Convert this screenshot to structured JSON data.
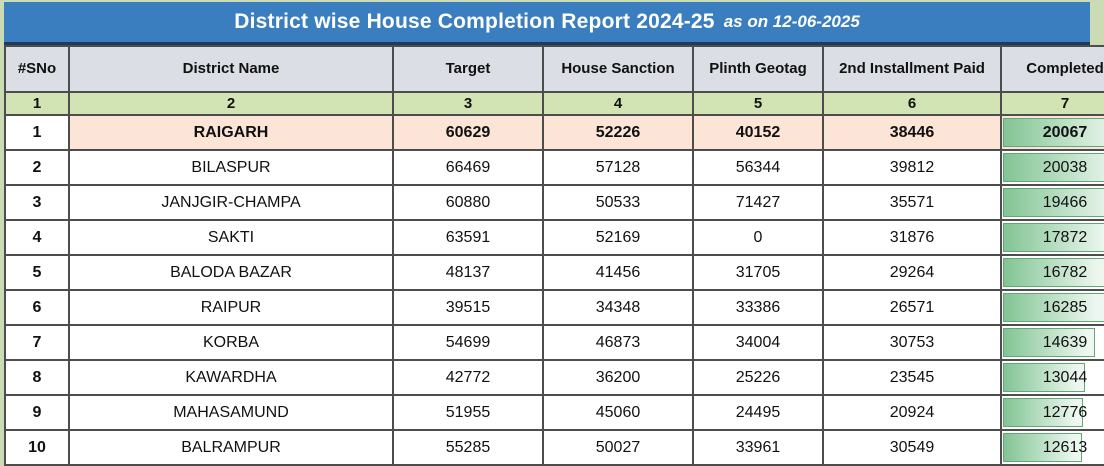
{
  "page": {
    "background": "#cbdcb4"
  },
  "title": {
    "text": "District wise House Completion Report 2024-25",
    "suffix": "as on 12-06-2025",
    "background": "#3a7ec0",
    "text_color": "#ffffff"
  },
  "table": {
    "header_background": "#dbdee4",
    "index_row_background": "#d2e4b3",
    "highlight_row_background": "#fce4d6",
    "databar": {
      "color_left": "#82c493",
      "color_right": "#edf7f0",
      "border": "#62a877",
      "max": 20067
    },
    "columns": [
      {
        "key": "sno",
        "label": "#SNo",
        "index": "1"
      },
      {
        "key": "district",
        "label": "District Name",
        "index": "2"
      },
      {
        "key": "target",
        "label": "Target",
        "index": "3"
      },
      {
        "key": "sanction",
        "label": "House Sanction",
        "index": "4"
      },
      {
        "key": "plinth",
        "label": "Plinth Geotag",
        "index": "5"
      },
      {
        "key": "installment",
        "label": "2nd Installment Paid",
        "index": "6"
      },
      {
        "key": "completed",
        "label": "Completed",
        "index": "7"
      }
    ],
    "rows": [
      {
        "sno": "1",
        "district": "RAIGARH",
        "target": "60629",
        "sanction": "52226",
        "plinth": "40152",
        "installment": "38446",
        "completed": "20067",
        "highlight": true
      },
      {
        "sno": "2",
        "district": "BILASPUR",
        "target": "66469",
        "sanction": "57128",
        "plinth": "56344",
        "installment": "39812",
        "completed": "20038",
        "highlight": false
      },
      {
        "sno": "3",
        "district": "JANJGIR-CHAMPA",
        "target": "60880",
        "sanction": "50533",
        "plinth": "71427",
        "installment": "35571",
        "completed": "19466",
        "highlight": false
      },
      {
        "sno": "4",
        "district": "SAKTI",
        "target": "63591",
        "sanction": "52169",
        "plinth": "0",
        "installment": "31876",
        "completed": "17872",
        "highlight": false
      },
      {
        "sno": "5",
        "district": "BALODA BAZAR",
        "target": "48137",
        "sanction": "41456",
        "plinth": "31705",
        "installment": "29264",
        "completed": "16782",
        "highlight": false
      },
      {
        "sno": "6",
        "district": "RAIPUR",
        "target": "39515",
        "sanction": "34348",
        "plinth": "33386",
        "installment": "26571",
        "completed": "16285",
        "highlight": false
      },
      {
        "sno": "7",
        "district": "KORBA",
        "target": "54699",
        "sanction": "46873",
        "plinth": "34004",
        "installment": "30753",
        "completed": "14639",
        "highlight": false
      },
      {
        "sno": "8",
        "district": "KAWARDHA",
        "target": "42772",
        "sanction": "36200",
        "plinth": "25226",
        "installment": "23545",
        "completed": "13044",
        "highlight": false
      },
      {
        "sno": "9",
        "district": "MAHASAMUND",
        "target": "51955",
        "sanction": "45060",
        "plinth": "24495",
        "installment": "20924",
        "completed": "12776",
        "highlight": false
      },
      {
        "sno": "10",
        "district": "BALRAMPUR",
        "target": "55285",
        "sanction": "50027",
        "plinth": "33961",
        "installment": "30549",
        "completed": "12613",
        "highlight": false
      }
    ]
  },
  "chart_data": {
    "type": "table",
    "title": "District wise House Completion Report 2024-25",
    "subtitle": "as on 12-06-2025",
    "columns": [
      "#SNo",
      "District Name",
      "Target",
      "House Sanction",
      "Plinth Geotag",
      "2nd Installment Paid",
      "Completed"
    ],
    "rows": [
      [
        1,
        "RAIGARH",
        60629,
        52226,
        40152,
        38446,
        20067
      ],
      [
        2,
        "BILASPUR",
        66469,
        57128,
        56344,
        39812,
        20038
      ],
      [
        3,
        "JANJGIR-CHAMPA",
        60880,
        50533,
        71427,
        35571,
        19466
      ],
      [
        4,
        "SAKTI",
        63591,
        52169,
        0,
        31876,
        17872
      ],
      [
        5,
        "BALODA BAZAR",
        48137,
        41456,
        31705,
        29264,
        16782
      ],
      [
        6,
        "RAIPUR",
        39515,
        34348,
        33386,
        26571,
        16285
      ],
      [
        7,
        "KORBA",
        54699,
        46873,
        34004,
        30753,
        14639
      ],
      [
        8,
        "KAWARDHA",
        42772,
        36200,
        25226,
        23545,
        13044
      ],
      [
        9,
        "MAHASAMUND",
        51955,
        45060,
        24495,
        20924,
        12776
      ],
      [
        10,
        "BALRAMPUR",
        55285,
        50027,
        33961,
        30549,
        12613
      ]
    ],
    "notes": {
      "completed_column_databar": "green gradient data bar, length proportional to value / max(20067)",
      "highlighted_row": "RAIGARH (row 1) shaded peach and bold"
    }
  }
}
